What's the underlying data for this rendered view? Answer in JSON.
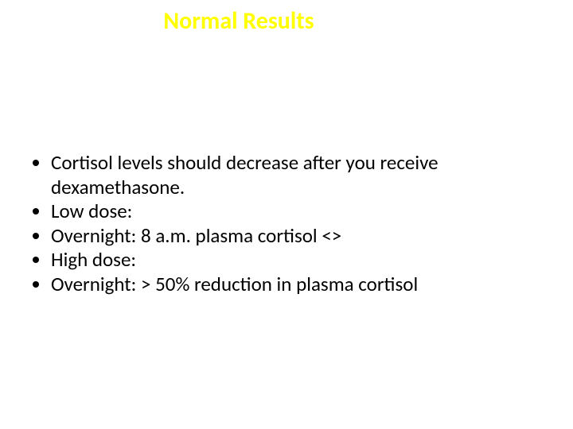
{
  "title": {
    "text": "Normal Results",
    "color": "#ffff00",
    "fontsize_pt": 30,
    "font_weight": 700
  },
  "body": {
    "bullets": [
      "Cortisol levels should decrease after you receive dexamethasone.",
      "Low dose:",
      "Overnight: 8 a.m. plasma cortisol <>",
      "High dose:",
      "Overnight: > 50% reduction in plasma cortisol"
    ],
    "fontsize_pt": 25,
    "color": "#000000"
  },
  "background_color": "#ffffff"
}
